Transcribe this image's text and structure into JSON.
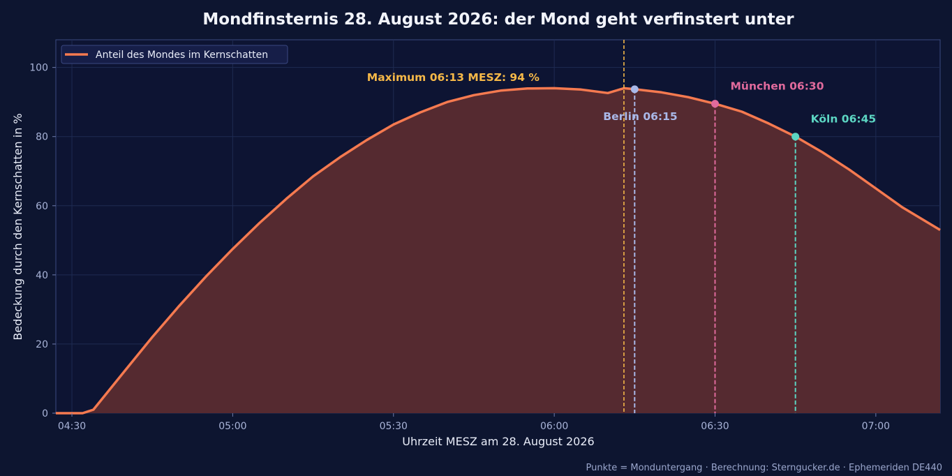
{
  "chart_data": {
    "type": "area",
    "title": "Mondfinsternis 28. August 2026: der Mond geht verfinstert unter",
    "xlabel": "Uhrzeit MESZ am 28. August 2026",
    "ylabel": "Bedeckung durch den Kernschatten in %",
    "xlim": [
      "04:27",
      "07:12"
    ],
    "ylim": [
      0,
      108
    ],
    "x_ticks": [
      "04:30",
      "05:00",
      "05:30",
      "06:00",
      "06:30",
      "07:00"
    ],
    "y_ticks": [
      0,
      20,
      40,
      60,
      80,
      100
    ],
    "grid": true,
    "legend_position": "top-left",
    "series": [
      {
        "name": "Anteil des Mondes im Kernschatten",
        "color": "#f57a50",
        "fill_color": "#552a30",
        "points": [
          [
            "04:27",
            0
          ],
          [
            "04:32",
            0
          ],
          [
            "04:34",
            1
          ],
          [
            "04:40",
            12.5
          ],
          [
            "04:45",
            22
          ],
          [
            "04:50",
            31
          ],
          [
            "04:55",
            39.5
          ],
          [
            "05:00",
            47.5
          ],
          [
            "05:05",
            55
          ],
          [
            "05:10",
            62
          ],
          [
            "05:15",
            68.5
          ],
          [
            "05:20",
            74
          ],
          [
            "05:25",
            79
          ],
          [
            "05:30",
            83.5
          ],
          [
            "05:35",
            87
          ],
          [
            "05:40",
            90
          ],
          [
            "05:45",
            92
          ],
          [
            "05:50",
            93.3
          ],
          [
            "05:55",
            93.9
          ],
          [
            "06:00",
            94
          ],
          [
            "06:05",
            93.6
          ],
          [
            "06:10",
            92.6
          ],
          [
            "06:13",
            94
          ],
          [
            "06:15",
            93.7
          ],
          [
            "06:20",
            92.8
          ],
          [
            "06:25",
            91.4
          ],
          [
            "06:30",
            89.5
          ],
          [
            "06:35",
            87.2
          ],
          [
            "06:40",
            83.8
          ],
          [
            "06:45",
            80
          ],
          [
            "06:50",
            75.5
          ],
          [
            "06:55",
            70.5
          ],
          [
            "07:00",
            65
          ],
          [
            "07:05",
            59.5
          ],
          [
            "07:12",
            53
          ]
        ]
      }
    ],
    "maximum": {
      "time": "06:13",
      "value": 94,
      "label": "Maximum 06:13 MESZ: 94 %",
      "color": "#f5b848"
    },
    "moonset_markers": [
      {
        "city": "Berlin",
        "time": "06:15",
        "value": 93.7,
        "label": "Berlin 06:15",
        "color": "#a9b8e8"
      },
      {
        "city": "München",
        "time": "06:30",
        "value": 89.5,
        "label": "München 06:30",
        "color": "#e06a9c"
      },
      {
        "city": "Köln",
        "time": "06:45",
        "value": 80,
        "label": "Köln 06:45",
        "color": "#5cd6c3"
      }
    ],
    "footnote": "Punkte = Monduntergang · Berechnung: Sterngucker.de · Ephemeriden DE440"
  }
}
